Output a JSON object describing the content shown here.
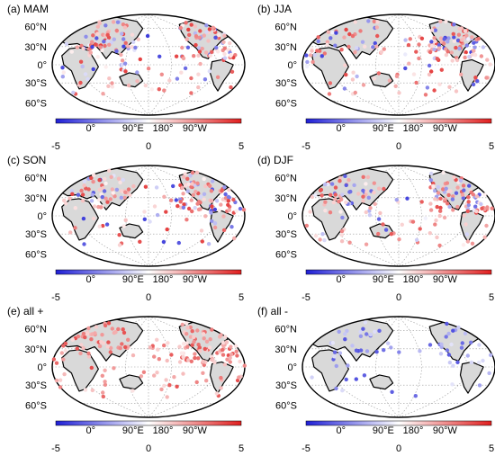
{
  "figure": {
    "panels": [
      {
        "id": "mam",
        "title": "(a) MAM",
        "palette": "mixed"
      },
      {
        "id": "jja",
        "title": "(b) JJA",
        "palette": "mixed"
      },
      {
        "id": "son",
        "title": "(c) SON",
        "palette": "mixed"
      },
      {
        "id": "djf",
        "title": "(d) DJF",
        "palette": "mixed"
      },
      {
        "id": "allpos",
        "title": "(e) all +",
        "palette": "positive"
      },
      {
        "id": "allneg",
        "title": "(f) all -",
        "palette": "negative"
      }
    ],
    "lat_labels": [
      "60°N",
      "30°N",
      "0°",
      "30°S",
      "60°S"
    ],
    "lon_labels": [
      "0°",
      "90°E",
      "180°",
      "90°W"
    ],
    "colorbar": {
      "ticks": [
        "-5",
        "0",
        "5"
      ],
      "min": -5,
      "max": 5,
      "colors": {
        "low": "#1f1fd6",
        "mid": "#ffffff",
        "high": "#e01f1f"
      }
    },
    "colors": {
      "land": "#d9d9d9",
      "coast": "#000000",
      "frame": "#000000",
      "grid": "#9a9a9a"
    }
  }
}
